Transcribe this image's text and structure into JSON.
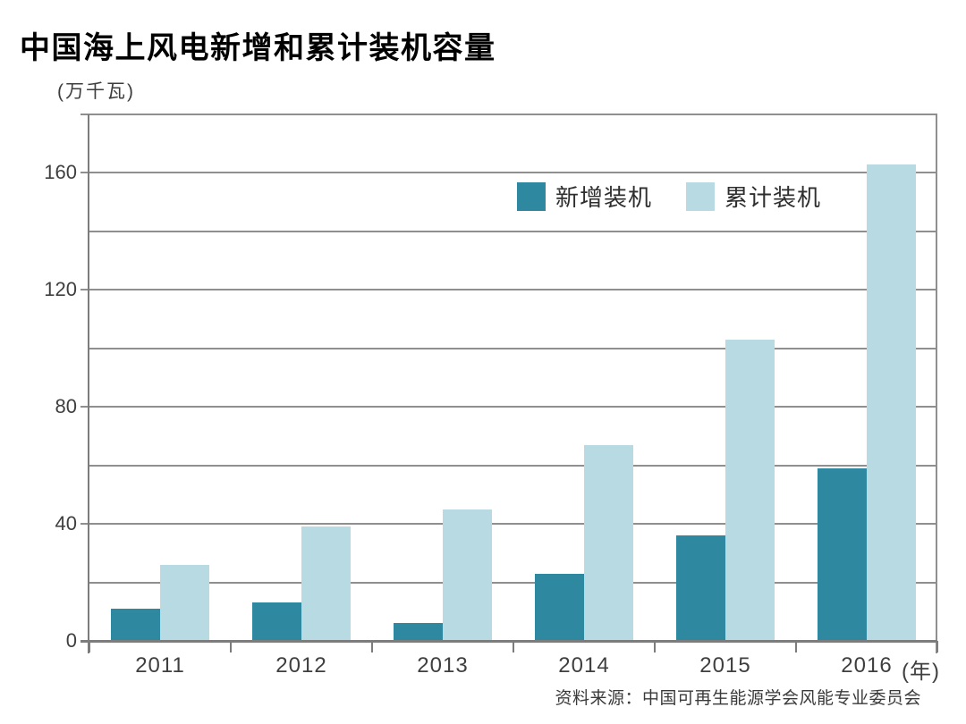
{
  "page": {
    "title": "中国海上风电新增和累计装机容量",
    "unit_label": "(万千瓦)",
    "year_suffix": "(年)",
    "source": "资料来源：中国可再生能源学会风能专业委员会"
  },
  "colors": {
    "new_series": "#2e89a0",
    "cumulative_series": "#b7dae3",
    "grid": "#8f8f8f",
    "axis": "#7c7c7c",
    "label_text": "#3f3f3f"
  },
  "chart_data": {
    "type": "bar",
    "title": "中国海上风电新增和累计装机容量",
    "ylabel": "万千瓦",
    "xlabel": "年",
    "categories": [
      "2011",
      "2012",
      "2013",
      "2014",
      "2015",
      "2016"
    ],
    "series": [
      {
        "name": "新增装机",
        "slug": "new-installed",
        "color": "#2e89a0",
        "values": [
          11,
          13,
          6,
          23,
          36,
          59
        ]
      },
      {
        "name": "累计装机",
        "slug": "cumulative-installed",
        "color": "#b7dae3",
        "values": [
          26,
          39,
          45,
          67,
          103,
          163
        ]
      }
    ],
    "ylim": [
      0,
      180
    ],
    "ytick_values": [
      0,
      40,
      80,
      120,
      160
    ],
    "grid_interval": 20,
    "grid": "on",
    "legend_position": "top-center-right-inside"
  }
}
